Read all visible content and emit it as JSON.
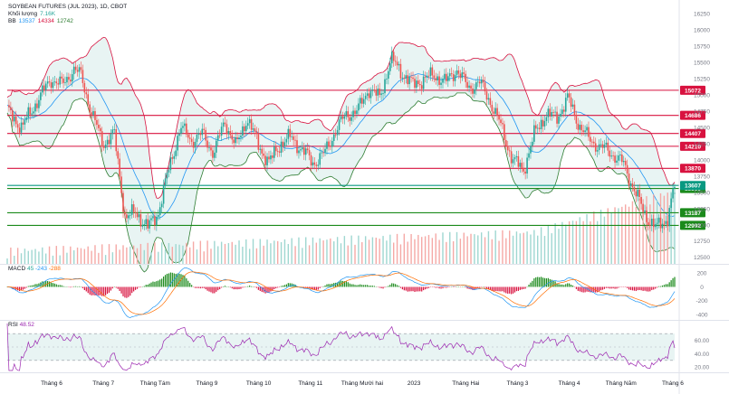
{
  "header": {
    "title": "SOYBEAN FUTURES (JUL 2023), 1D, CBOT",
    "volume_label": "Khối lượng",
    "volume_value": "7.16K",
    "bb_label": "BB",
    "bb_basis": "13537",
    "bb_upper": "14334",
    "bb_lower": "12742"
  },
  "macd_pane": {
    "label": "MACD",
    "fast": "45",
    "hist": "-243",
    "signal": "-288"
  },
  "rsi_pane": {
    "label": "RSI",
    "value": "48.52"
  },
  "colors": {
    "up": "#26a69a",
    "down": "#ef5350",
    "bb_basis": "#2196f3",
    "bb_upper": "#d8123f",
    "bb_lower": "#2e7d32",
    "bb_fill": "#e8f4f3",
    "resistance": "#d8123f",
    "support": "#1b8a1b",
    "rsi": "#9c27b0",
    "macd_line": "#2196f3",
    "signal_line": "#ff6d00"
  },
  "chart_data": [
    {
      "type": "candlestick",
      "title": "SOYBEAN FUTURES (JUL 2023), 1D, CBOT",
      "y_ticks": [
        "16250",
        "16000",
        "15750",
        "15500",
        "15250",
        "15000",
        "14750",
        "14500",
        "14250",
        "14000",
        "13750",
        "13500",
        "13250",
        "13000",
        "12750",
        "12500"
      ],
      "x_ticks": [
        "Tháng 6",
        "Tháng 7",
        "Tháng Tám",
        "Tháng 9",
        "Tháng 10",
        "Tháng 11",
        "Tháng Mười hai",
        "2023",
        "Tháng Hai",
        "Tháng 3",
        "Tháng 4",
        "Tháng Năm",
        "Tháng 6"
      ],
      "ylim": [
        12400,
        16350
      ],
      "resistance_levels": [
        {
          "value": 15072,
          "label": "15072"
        },
        {
          "value": 14686,
          "label": "14686"
        },
        {
          "value": 14407,
          "label": "14407"
        },
        {
          "value": 14210,
          "label": "14210"
        },
        {
          "value": 13870,
          "label": "13870"
        }
      ],
      "current_price": {
        "value": 13607,
        "label": "13607"
      },
      "support_levels": [
        {
          "value": 13560,
          "label": "13560"
        },
        {
          "value": 13187,
          "label": "13187"
        },
        {
          "value": 12992,
          "label": "12992"
        }
      ],
      "close_path": [
        [
          0,
          14750
        ],
        [
          8,
          14500
        ],
        [
          16,
          14900
        ],
        [
          24,
          15250
        ],
        [
          30,
          15150
        ],
        [
          36,
          15400
        ],
        [
          40,
          15300
        ],
        [
          46,
          14700
        ],
        [
          52,
          14250
        ],
        [
          58,
          14400
        ],
        [
          64,
          13100
        ],
        [
          70,
          13200
        ],
        [
          76,
          12950
        ],
        [
          82,
          13200
        ],
        [
          88,
          13900
        ],
        [
          94,
          14500
        ],
        [
          100,
          14300
        ],
        [
          106,
          14400
        ],
        [
          112,
          14100
        ],
        [
          118,
          14600
        ],
        [
          124,
          14200
        ],
        [
          130,
          14650
        ],
        [
          136,
          14250
        ],
        [
          142,
          13950
        ],
        [
          148,
          14250
        ],
        [
          154,
          14350
        ],
        [
          160,
          14150
        ],
        [
          166,
          13950
        ],
        [
          172,
          14100
        ],
        [
          178,
          14450
        ],
        [
          184,
          14700
        ],
        [
          190,
          14750
        ],
        [
          196,
          15100
        ],
        [
          202,
          14950
        ],
        [
          208,
          15550
        ],
        [
          214,
          15350
        ],
        [
          220,
          15150
        ],
        [
          226,
          15250
        ],
        [
          232,
          15300
        ],
        [
          238,
          15200
        ],
        [
          244,
          15400
        ],
        [
          250,
          15100
        ],
        [
          256,
          15200
        ],
        [
          262,
          14900
        ],
        [
          268,
          14500
        ],
        [
          274,
          14000
        ],
        [
          280,
          13850
        ],
        [
          286,
          14400
        ],
        [
          292,
          14700
        ],
        [
          298,
          14650
        ],
        [
          304,
          14950
        ],
        [
          310,
          14550
        ],
        [
          316,
          14300
        ],
        [
          322,
          14200
        ],
        [
          328,
          14100
        ],
        [
          334,
          13950
        ],
        [
          340,
          13550
        ],
        [
          346,
          13150
        ],
        [
          352,
          12950
        ],
        [
          358,
          13100
        ],
        [
          362,
          13600
        ]
      ],
      "volume_profile": "rising bars toward the right, peak near Tháng Năm"
    },
    {
      "type": "line",
      "title": "MACD",
      "y_ticks": [
        "200",
        "0",
        "-200",
        "-400"
      ],
      "ylim": [
        -450,
        280
      ]
    },
    {
      "type": "line",
      "title": "RSI",
      "y_ticks": [
        "60.00",
        "40.00",
        "20.00"
      ],
      "ylim": [
        15,
        85
      ],
      "bands": [
        70,
        30
      ],
      "last": 48.52
    }
  ]
}
